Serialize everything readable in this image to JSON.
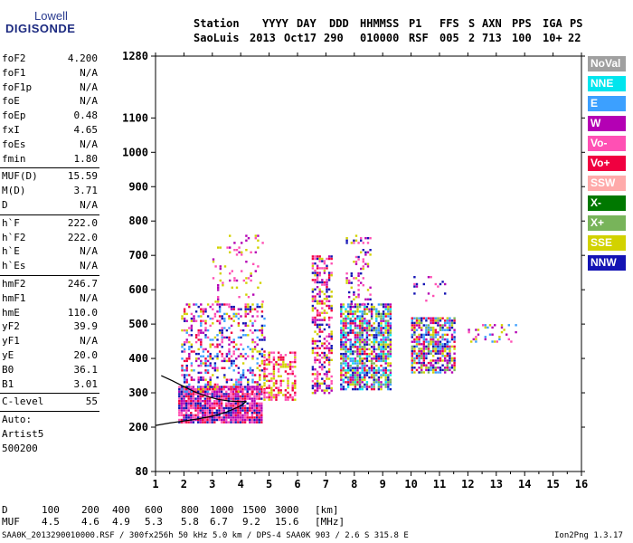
{
  "logo": {
    "brand": "Lowell",
    "product": "DIGISONDE"
  },
  "header": {
    "labels": [
      "Station",
      "YYYY",
      "DAY",
      "DDD",
      "HHMMSS",
      "P1",
      "FFS",
      "S",
      "AXN",
      "PPS",
      "IGA",
      "PS"
    ],
    "values": [
      "SaoLuis",
      "2013",
      "Oct17",
      "290",
      "010000",
      "RSF",
      "005",
      "2",
      "713",
      "100",
      "10+",
      "22"
    ]
  },
  "params": {
    "group1": [
      {
        "name": "foF2",
        "value": "4.200"
      },
      {
        "name": "foF1",
        "value": "N/A"
      },
      {
        "name": "foF1p",
        "value": "N/A"
      },
      {
        "name": "foE",
        "value": "N/A"
      },
      {
        "name": "foEp",
        "value": "0.48"
      },
      {
        "name": "fxI",
        "value": "4.65"
      },
      {
        "name": "foEs",
        "value": "N/A"
      },
      {
        "name": "fmin",
        "value": "1.80"
      }
    ],
    "group2": [
      {
        "name": "MUF(D)",
        "value": "15.59"
      },
      {
        "name": "M(D)",
        "value": "3.71"
      },
      {
        "name": "D",
        "value": "N/A"
      }
    ],
    "group3": [
      {
        "name": "h`F",
        "value": "222.0"
      },
      {
        "name": "h`F2",
        "value": "222.0"
      },
      {
        "name": "h`E",
        "value": "N/A"
      },
      {
        "name": "h`Es",
        "value": "N/A"
      }
    ],
    "group4": [
      {
        "name": "hmF2",
        "value": "246.7"
      },
      {
        "name": "hmF1",
        "value": "N/A"
      },
      {
        "name": "hmE",
        "value": "110.0"
      },
      {
        "name": "yF2",
        "value": "39.9"
      },
      {
        "name": "yF1",
        "value": "N/A"
      },
      {
        "name": "yE",
        "value": "20.0"
      },
      {
        "name": "B0",
        "value": "36.1"
      },
      {
        "name": "B1",
        "value": "3.01"
      }
    ],
    "clevel": {
      "name": "C-level",
      "value": "55"
    },
    "auto": [
      "Auto:",
      "Artist5",
      "500200"
    ]
  },
  "legend": [
    {
      "label": "NoVal",
      "color": "#a0a0a0"
    },
    {
      "label": "NNE",
      "color": "#00e5ee"
    },
    {
      "label": "E",
      "color": "#3ca0ff"
    },
    {
      "label": "W",
      "color": "#b400b4"
    },
    {
      "label": "Vo-",
      "color": "#ff50b4"
    },
    {
      "label": "Vo+",
      "color": "#f00040"
    },
    {
      "label": "SSW",
      "color": "#ffaaaa"
    },
    {
      "label": "X-",
      "color": "#007800"
    },
    {
      "label": "X+",
      "color": "#78b45a"
    },
    {
      "label": "SSE",
      "color": "#d2d200"
    },
    {
      "label": "NNW",
      "color": "#1414b4"
    }
  ],
  "footer": {
    "d_label": "D",
    "d_values": [
      "100",
      "200",
      "400",
      "600",
      "800",
      "1000",
      "1500",
      "3000",
      "[km]"
    ],
    "muf_label": "MUF",
    "muf_values": [
      "4.5",
      "4.6",
      "4.9",
      "5.3",
      "5.8",
      "6.7",
      "9.2",
      "15.6",
      "[MHz]"
    ],
    "file_info": "SAA0K_2013290010000.RSF / 300fx256h 50 kHz 5.0 km / DPS-4 SAA0K 903 / 2.6 S 315.8 E",
    "version": "Ion2Png 1.3.17"
  },
  "chart_data": {
    "type": "scatter",
    "title": "",
    "xlabel": "",
    "ylabel": "",
    "xlim": [
      1,
      16
    ],
    "ylim": [
      80,
      1280
    ],
    "x_ticks": [
      1,
      2,
      3,
      4,
      5,
      6,
      7,
      8,
      9,
      10,
      11,
      12,
      13,
      14,
      15,
      16
    ],
    "y_ticks": [
      80,
      200,
      300,
      400,
      500,
      600,
      700,
      800,
      900,
      1000,
      1100,
      1280
    ],
    "point_columns": [
      {
        "x_range": [
          1.8,
          4.7
        ],
        "h_range": [
          215,
          320
        ],
        "density": 0.9,
        "series": [
          "Vo+",
          "Vo-",
          "W",
          "NNW"
        ]
      },
      {
        "x_range": [
          1.9,
          4.8
        ],
        "h_range": [
          300,
          560
        ],
        "density": 0.35,
        "series": [
          "Vo+",
          "Vo-",
          "SSE",
          "NNW",
          "W",
          "E"
        ]
      },
      {
        "x_range": [
          3.0,
          4.8
        ],
        "h_range": [
          560,
          760
        ],
        "density": 0.12,
        "series": [
          "SSE",
          "Vo-",
          "W"
        ]
      },
      {
        "x_range": [
          4.8,
          5.9
        ],
        "h_range": [
          280,
          420
        ],
        "density": 0.5,
        "series": [
          "Vo+",
          "SSE",
          "Vo-"
        ]
      },
      {
        "x_range": [
          6.5,
          7.2
        ],
        "h_range": [
          300,
          700
        ],
        "density": 0.5,
        "series": [
          "Vo+",
          "W",
          "Vo-",
          "SSE",
          "NNW"
        ]
      },
      {
        "x_range": [
          7.5,
          9.3
        ],
        "h_range": [
          310,
          560
        ],
        "density": 0.75,
        "series": [
          "E",
          "NNW",
          "W",
          "SSE",
          "Vo+",
          "NNE",
          "X+"
        ]
      },
      {
        "x_range": [
          7.7,
          8.6
        ],
        "h_range": [
          560,
          760
        ],
        "density": 0.2,
        "series": [
          "W",
          "Vo-",
          "NNW",
          "SSE"
        ]
      },
      {
        "x_range": [
          10.0,
          11.5
        ],
        "h_range": [
          360,
          520
        ],
        "density": 0.7,
        "series": [
          "SSE",
          "Vo+",
          "E",
          "W",
          "NNW",
          "X+"
        ]
      },
      {
        "x_range": [
          10.0,
          11.4
        ],
        "h_range": [
          560,
          640
        ],
        "density": 0.15,
        "series": [
          "W",
          "Vo-",
          "NNW"
        ]
      },
      {
        "x_range": [
          12.0,
          13.8
        ],
        "h_range": [
          440,
          500
        ],
        "density": 0.15,
        "series": [
          "Vo-",
          "W",
          "SSE",
          "E"
        ]
      }
    ],
    "trace_curve": [
      [
        1.0,
        205
      ],
      [
        1.5,
        212
      ],
      [
        2.0,
        218
      ],
      [
        2.5,
        224
      ],
      [
        3.0,
        232
      ],
      [
        3.5,
        244
      ],
      [
        4.0,
        262
      ],
      [
        4.2,
        275
      ]
    ],
    "trace_curve2": [
      [
        1.2,
        350
      ],
      [
        1.6,
        335
      ],
      [
        2.0,
        318
      ],
      [
        2.4,
        302
      ],
      [
        2.8,
        290
      ],
      [
        3.2,
        281
      ],
      [
        3.6,
        276
      ],
      [
        4.0,
        274
      ],
      [
        4.2,
        275
      ]
    ]
  }
}
